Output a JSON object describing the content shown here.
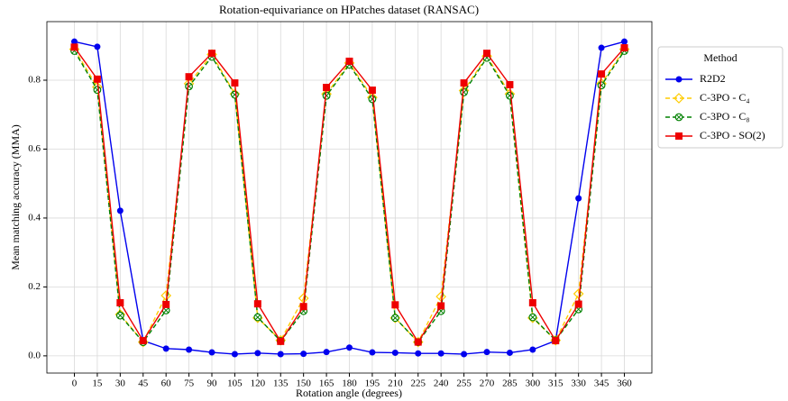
{
  "chart_data": {
    "type": "line",
    "title": "Rotation-equivariance on HPatches dataset (RANSAC)",
    "xlabel": "Rotation angle (degrees)",
    "ylabel": "Mean matching accuracy (MMA)",
    "x": [
      0,
      15,
      30,
      45,
      60,
      75,
      90,
      105,
      120,
      135,
      150,
      165,
      180,
      195,
      210,
      225,
      240,
      255,
      270,
      285,
      300,
      315,
      330,
      345,
      360
    ],
    "xlim": [
      -18,
      378
    ],
    "xticks": [
      0,
      15,
      30,
      45,
      60,
      75,
      90,
      105,
      120,
      135,
      150,
      165,
      180,
      195,
      210,
      225,
      240,
      255,
      270,
      285,
      300,
      315,
      330,
      345,
      360
    ],
    "ylim": [
      -0.05,
      0.97
    ],
    "yticks": [
      {
        "value": 0,
        "label": "0.0"
      },
      0.2,
      0.4,
      0.6,
      0.8
    ],
    "grid": true,
    "legend_title": "Method",
    "legend": "outside right",
    "series": [
      {
        "name": "R2D2",
        "color": "#0000ee",
        "marker": "circle",
        "linestyle": "solid",
        "values": [
          0.912,
          0.897,
          0.421,
          0.044,
          0.021,
          0.018,
          0.01,
          0.005,
          0.008,
          0.005,
          0.006,
          0.011,
          0.024,
          0.01,
          0.009,
          0.007,
          0.007,
          0.005,
          0.011,
          0.009,
          0.018,
          0.044,
          0.457,
          0.894,
          0.912
        ]
      },
      {
        "name": "C-3PO - C₄",
        "color": "#ffcc00",
        "marker": "diamond",
        "linestyle": "dashed",
        "values": [
          0.89,
          0.78,
          0.12,
          0.04,
          0.175,
          0.79,
          0.875,
          0.76,
          0.11,
          0.045,
          0.167,
          0.76,
          0.85,
          0.75,
          0.11,
          0.04,
          0.172,
          0.77,
          0.87,
          0.76,
          0.11,
          0.045,
          0.18,
          0.79,
          0.89
        ]
      },
      {
        "name": "C-3PO - C₈",
        "color": "#008000",
        "marker": "crossed-circle",
        "linestyle": "dashed",
        "values": [
          0.885,
          0.772,
          0.117,
          0.04,
          0.132,
          0.782,
          0.868,
          0.758,
          0.112,
          0.043,
          0.13,
          0.755,
          0.845,
          0.745,
          0.11,
          0.04,
          0.13,
          0.765,
          0.865,
          0.755,
          0.112,
          0.045,
          0.135,
          0.785,
          0.885
        ]
      },
      {
        "name": "C-3PO - SO(2)",
        "color": "#ee0000",
        "marker": "square",
        "linestyle": "solid",
        "values": [
          0.896,
          0.803,
          0.154,
          0.044,
          0.149,
          0.81,
          0.878,
          0.792,
          0.151,
          0.042,
          0.143,
          0.779,
          0.855,
          0.771,
          0.148,
          0.04,
          0.145,
          0.792,
          0.878,
          0.787,
          0.154,
          0.044,
          0.15,
          0.818,
          0.894
        ]
      }
    ]
  }
}
